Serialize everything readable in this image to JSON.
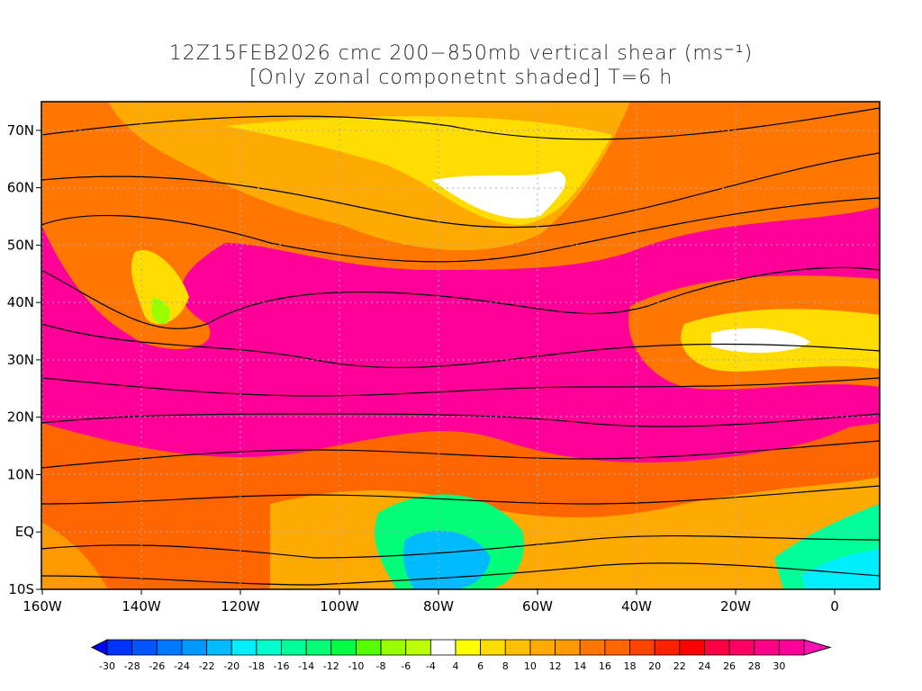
{
  "title": {
    "line1": "12Z15FEB2026 cmc 200−850mb vertical shear (ms⁻¹)",
    "line2": "[Only zonal componetnt shaded] T=6 h"
  },
  "axes": {
    "lon_labels": [
      "160W",
      "140W",
      "120W",
      "100W",
      "80W",
      "60W",
      "40W",
      "20W",
      "0"
    ],
    "lon_values": [
      -160,
      -140,
      -120,
      -100,
      -80,
      -60,
      -40,
      -20,
      0
    ],
    "lat_labels": [
      "70N",
      "60N",
      "50N",
      "40N",
      "30N",
      "20N",
      "10N",
      "EQ",
      "10S"
    ],
    "lat_values": [
      70,
      60,
      50,
      40,
      30,
      20,
      10,
      0,
      -10
    ],
    "lon_range": [
      -160,
      10
    ],
    "lat_range": [
      -10,
      75
    ]
  },
  "colorbar": {
    "labels": [
      "-30",
      "-28",
      "-26",
      "-24",
      "-22",
      "-20",
      "-18",
      "-16",
      "-14",
      "-12",
      "-10",
      "-8",
      "-6",
      "-4",
      "4",
      "6",
      "8",
      "10",
      "12",
      "14",
      "16",
      "18",
      "20",
      "22",
      "24",
      "26",
      "28",
      "30"
    ],
    "low_color": "#0000ff",
    "high_color": "#ff10b0",
    "colors": [
      "#0033ff",
      "#0055ff",
      "#0077ff",
      "#0099ff",
      "#00bbff",
      "#00eeff",
      "#00ffcc",
      "#00ff99",
      "#00ff77",
      "#00ff44",
      "#55ff00",
      "#99ff00",
      "#bbff00",
      "#ffffff",
      "#ffff00",
      "#ffdd00",
      "#ffc000",
      "#ffaa00",
      "#ff9900",
      "#ff7700",
      "#ff6600",
      "#ff4400",
      "#ff2200",
      "#ff0000",
      "#ff0044",
      "#ff0066",
      "#ff0088",
      "#ff0099"
    ]
  }
}
